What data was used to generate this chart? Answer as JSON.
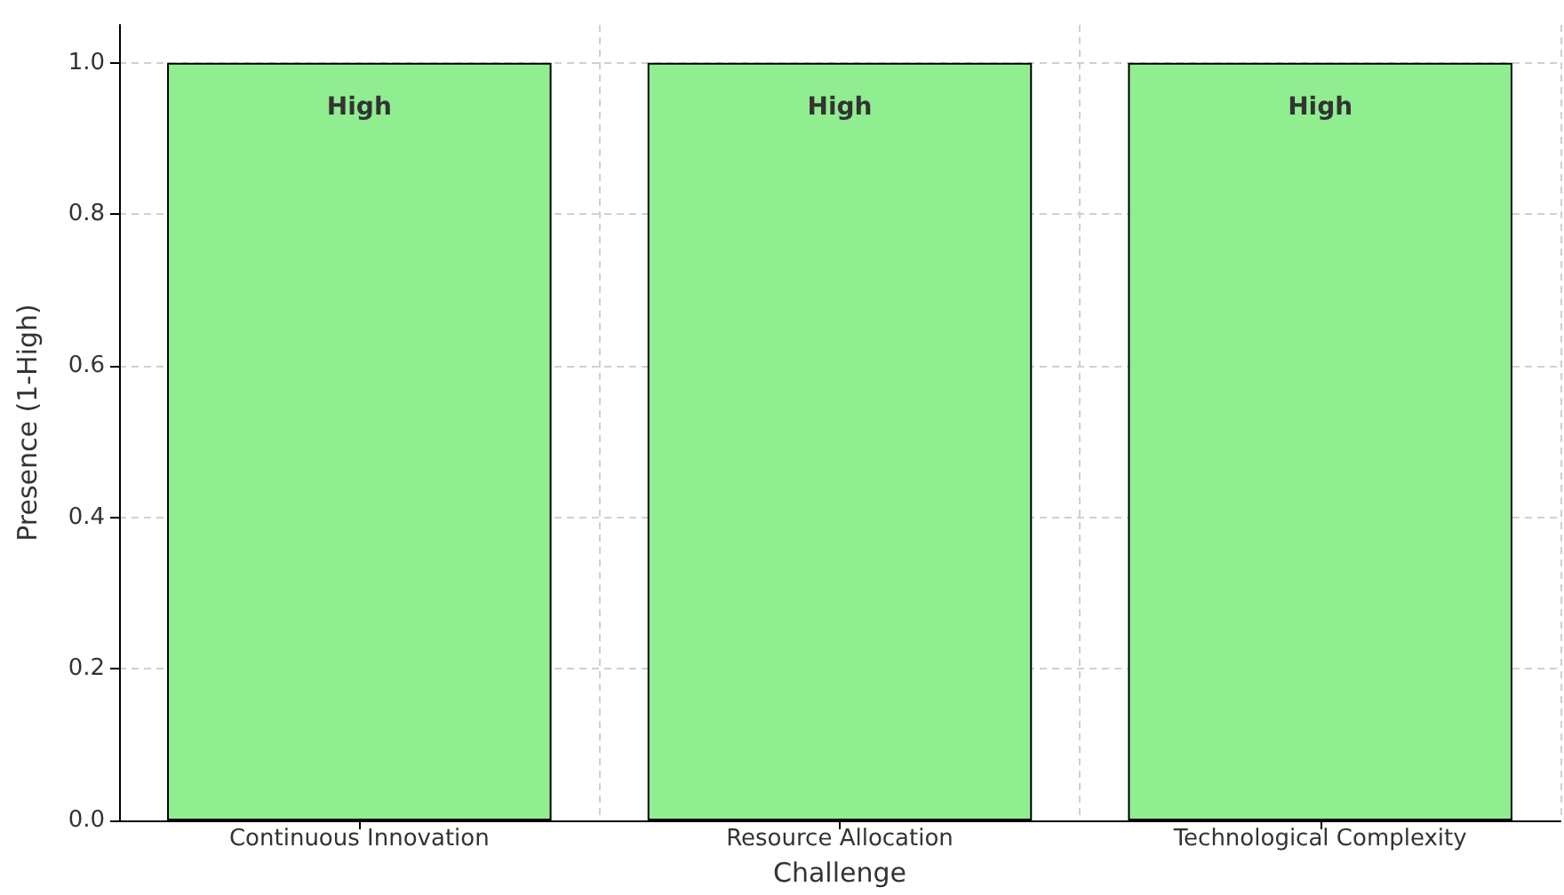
{
  "chart_data": {
    "type": "bar",
    "xlabel": "Challenge",
    "ylabel": "Presence (1-High)",
    "categories": [
      "Continuous Innovation",
      "Resource Allocation",
      "Technological Complexity"
    ],
    "values": [
      1.0,
      1.0,
      1.0
    ],
    "value_labels": [
      "High",
      "High",
      "High"
    ],
    "color": "#90ee90",
    "ylim": [
      0,
      1.05
    ],
    "yticks": [
      {
        "value": 0,
        "label": "0.0"
      },
      0.2,
      0.4,
      0.6,
      0.8,
      {
        "value": 1,
        "label": "1.0"
      }
    ],
    "grid": true
  }
}
